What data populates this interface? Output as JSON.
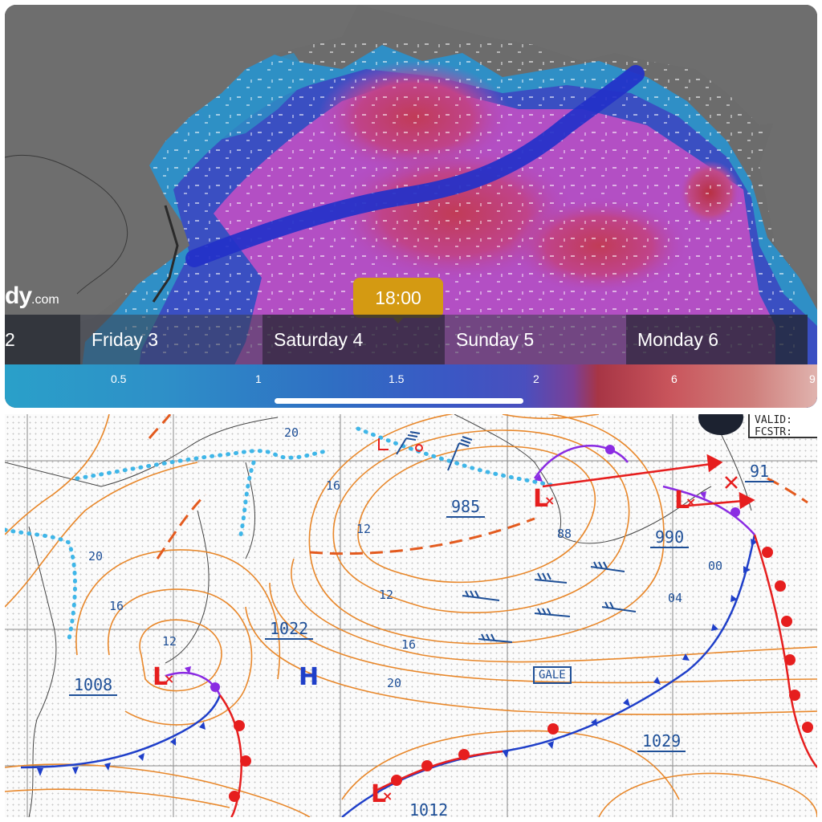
{
  "top_panel": {
    "brand": "dy",
    "brand_suffix": ".com",
    "selected_time": "18:00",
    "days": [
      "2",
      "Friday 3",
      "Saturday 4",
      "Sunday 5",
      "Monday 6"
    ],
    "scale_ticks": [
      "0.5",
      "1",
      "1.5",
      "2",
      "6",
      "9"
    ],
    "colors": {
      "time_badge": "#d49a12",
      "land": "#6d6d6d",
      "track": "#2331c9"
    }
  },
  "bottom_panel": {
    "header_lines": [
      "VALID:",
      "FCSTR:"
    ],
    "pressure_labels": [
      "985",
      "990",
      "1022",
      "1008",
      "1029",
      "1012",
      "91"
    ],
    "isobar_labels": [
      "20",
      "16",
      "12",
      "88",
      "12",
      "16",
      "20",
      "00",
      "04",
      "20",
      "16",
      "12"
    ],
    "high_marker": "H",
    "low_marker": "L",
    "gale_box": "GALE",
    "colors": {
      "isobar": "#e8872a",
      "cold_front": "#1f3fc9",
      "warm_front": "#e61e1e",
      "occluded": "#8a2be2",
      "ice_edge": "#3fb6e8"
    }
  }
}
